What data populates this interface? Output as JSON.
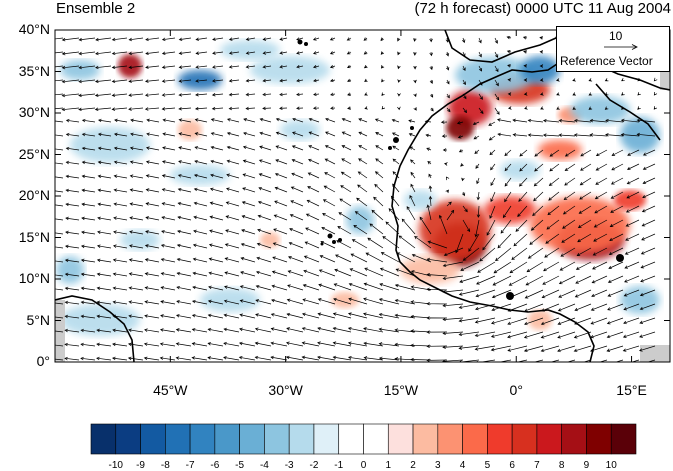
{
  "title_left": "Ensemble 2",
  "title_right": "(72 h forecast) 0000 UTC 11 Aug 2004",
  "reference_vector": {
    "magnitude": "10",
    "label": "Reference Vector"
  },
  "map": {
    "lon_range": [
      -60,
      20
    ],
    "lat_range": [
      0,
      40
    ],
    "lat_labels": [
      "40°N",
      "35°N",
      "30°N",
      "25°N",
      "20°N",
      "15°N",
      "10°N",
      "5°N",
      "0°"
    ],
    "lon_labels": [
      "45°W",
      "30°W",
      "15°W",
      "0°",
      "15°E"
    ]
  },
  "colorbar": {
    "labels": [
      "-10",
      "-9",
      "-8",
      "-7",
      "-6",
      "-5",
      "-4",
      "-3",
      "-2",
      "-1",
      "0",
      "1",
      "2",
      "3",
      "4",
      "5",
      "6",
      "7",
      "8",
      "9",
      "10"
    ],
    "colors": [
      "#08306b",
      "#0b3d82",
      "#135aa2",
      "#2171b5",
      "#3183c0",
      "#4a98c9",
      "#6aafd5",
      "#8dc5e0",
      "#b5dbec",
      "#dff0f8",
      "#ffffff",
      "#ffffff",
      "#fde0dd",
      "#fcbba1",
      "#fc9272",
      "#fb6a4a",
      "#ef3b2c",
      "#d7301f",
      "#cb181d",
      "#a50f15",
      "#7f0000",
      "#5a0008"
    ]
  },
  "colors": {
    "negative_accent": "#2171b5",
    "positive_accent": "#cb181d",
    "coastline": "#000000",
    "missing": "#cccccc"
  }
}
